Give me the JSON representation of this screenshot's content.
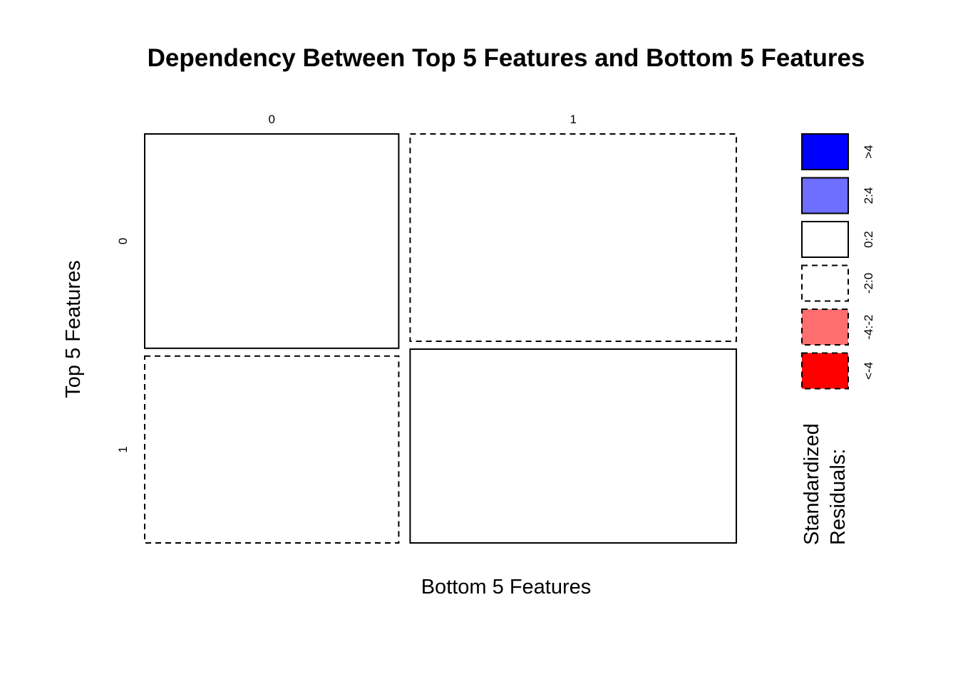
{
  "chart_data": {
    "type": "mosaic",
    "title": "Dependency Between Top 5 Features and Bottom 5 Features",
    "xlabel": "Bottom 5 Features",
    "ylabel": "Top 5 Features",
    "x_categories": [
      "0",
      "1"
    ],
    "y_categories": [
      "0",
      "1"
    ],
    "column_proportions": [
      0.4378,
      0.5622
    ],
    "row_proportions_within_column": [
      [
        0.5343,
        0.4657
      ],
      [
        0.5169,
        0.4831
      ]
    ],
    "residual_sign": [
      [
        "positive",
        "negative"
      ],
      [
        "negative",
        "positive"
      ]
    ],
    "legend": {
      "title_lines": [
        "Standardized",
        "Residuals:"
      ],
      "entries": [
        {
          "label": ">4",
          "fill": "#0000FF",
          "dashed": false
        },
        {
          "label": "2:4",
          "fill": "#6E6EFF",
          "dashed": false
        },
        {
          "label": "0:2",
          "fill": "#FFFFFF",
          "dashed": false
        },
        {
          "label": "-2:0",
          "fill": "#FFFFFF",
          "dashed": true
        },
        {
          "label": "-4:-2",
          "fill": "#FF6E6E",
          "dashed": true
        },
        {
          "label": "<-4",
          "fill": "#FF0000",
          "dashed": true
        }
      ]
    }
  }
}
